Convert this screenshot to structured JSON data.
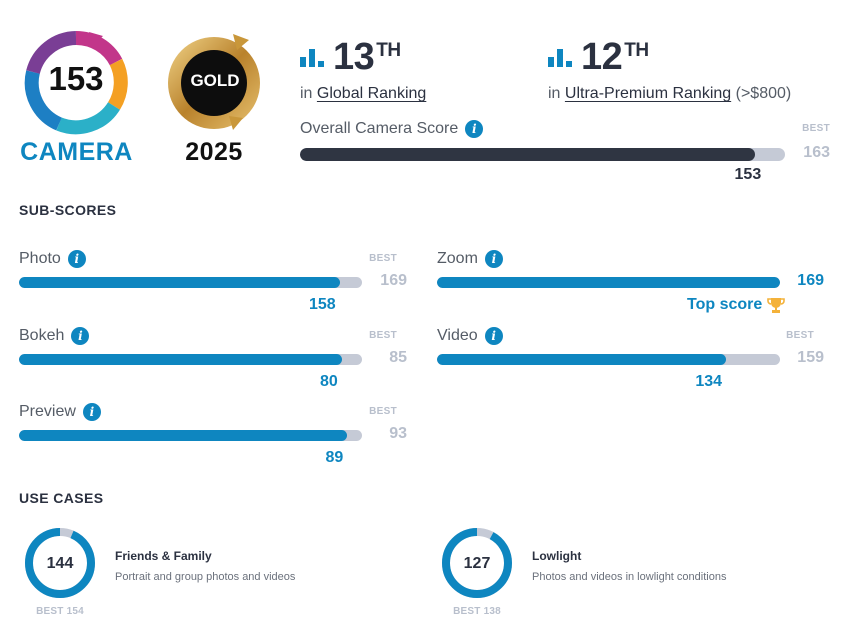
{
  "badges": {
    "camera_score": "153",
    "camera_label": "CAMERA",
    "gold_label": "GOLD",
    "year": "2025"
  },
  "rankings": [
    {
      "rank": "13",
      "suffix": "TH",
      "prefix": "in",
      "link": "Global Ranking",
      "extra": ""
    },
    {
      "rank": "12",
      "suffix": "TH",
      "prefix": "in",
      "link": "Ultra-Premium Ranking",
      "extra": "(>$800)"
    }
  ],
  "overall": {
    "label": "Overall Camera Score",
    "best_label": "BEST",
    "best": 163,
    "score": 153
  },
  "subscores": {
    "title": "SUB-SCORES",
    "items": [
      {
        "label": "Photo",
        "score": 158,
        "best": 169,
        "best_label": "BEST",
        "top": false
      },
      {
        "label": "Bokeh",
        "score": 80,
        "best": 85,
        "best_label": "BEST",
        "top": false
      },
      {
        "label": "Preview",
        "score": 89,
        "best": 93,
        "best_label": "BEST",
        "top": false
      },
      {
        "label": "Zoom",
        "score": 169,
        "best": 169,
        "best_label": "",
        "top": true,
        "top_label": "Top score"
      },
      {
        "label": "Video",
        "score": 134,
        "best": 159,
        "best_label": "BEST",
        "top": false
      }
    ]
  },
  "use_cases": {
    "title": "USE CASES",
    "items": [
      {
        "score": 144,
        "best": 154,
        "best_text": "BEST 154",
        "title": "Friends & Family",
        "desc": "Portrait and group photos and videos"
      },
      {
        "score": 127,
        "best": 138,
        "best_text": "BEST 138",
        "title": "Lowlight",
        "desc": "Photos and videos in lowlight conditions"
      }
    ]
  },
  "colors": {
    "blue": "#0e86c0",
    "dark": "#2f3542",
    "track": "#c5cad6",
    "gold": "#c9973a"
  },
  "icons": [
    "bar-chart-icon",
    "info-icon",
    "trophy-icon"
  ]
}
